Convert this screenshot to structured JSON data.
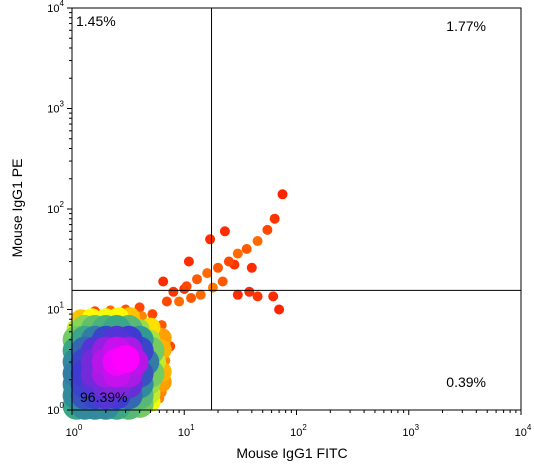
{
  "chart_data": {
    "type": "scatter",
    "subtype": "flow-cytometry-density-dot-plot",
    "xlabel": "Mouse IgG1 FITC",
    "ylabel": "Mouse IgG1 PE",
    "xscale": "log",
    "yscale": "log",
    "xlim": [
      1,
      10000
    ],
    "ylim": [
      1,
      10000
    ],
    "xticks": [
      {
        "base": "10",
        "exp": "0",
        "value": 1
      },
      {
        "base": "10",
        "exp": "1",
        "value": 10
      },
      {
        "base": "10",
        "exp": "2",
        "value": 100
      },
      {
        "base": "10",
        "exp": "3",
        "value": 1000
      },
      {
        "base": "10",
        "exp": "4",
        "value": 10000
      }
    ],
    "yticks": [
      {
        "base": "10",
        "exp": "0",
        "value": 1
      },
      {
        "base": "10",
        "exp": "1",
        "value": 10
      },
      {
        "base": "10",
        "exp": "2",
        "value": 100
      },
      {
        "base": "10",
        "exp": "3",
        "value": 1000
      },
      {
        "base": "10",
        "exp": "4",
        "value": 10000
      }
    ],
    "gate": {
      "x": 17.5,
      "y": 15.5
    },
    "quadrants": {
      "upper_left": "1.45%",
      "upper_right": "1.77%",
      "lower_left": "96.39%",
      "lower_right": "0.39%"
    },
    "density_colors": [
      "#ff0000",
      "#ff7f00",
      "#ffff00",
      "#7fd35a",
      "#2e9f8f",
      "#3b3bd0",
      "#9a1fe0",
      "#ff00ff"
    ],
    "points": [
      {
        "x": 1.1,
        "y": 1.1,
        "d": 0.55
      },
      {
        "x": 1.3,
        "y": 1.1,
        "d": 0.6
      },
      {
        "x": 1.6,
        "y": 1.1,
        "d": 0.6
      },
      {
        "x": 2.0,
        "y": 1.1,
        "d": 0.6
      },
      {
        "x": 2.5,
        "y": 1.1,
        "d": 0.55
      },
      {
        "x": 3.2,
        "y": 1.1,
        "d": 0.5
      },
      {
        "x": 4.0,
        "y": 1.15,
        "d": 0.45
      },
      {
        "x": 5.0,
        "y": 1.2,
        "d": 0.3
      },
      {
        "x": 6.0,
        "y": 1.3,
        "d": 0.15
      },
      {
        "x": 1.1,
        "y": 1.4,
        "d": 0.6
      },
      {
        "x": 1.3,
        "y": 1.4,
        "d": 0.68
      },
      {
        "x": 1.6,
        "y": 1.4,
        "d": 0.7
      },
      {
        "x": 2.0,
        "y": 1.4,
        "d": 0.75
      },
      {
        "x": 2.5,
        "y": 1.4,
        "d": 0.72
      },
      {
        "x": 3.2,
        "y": 1.4,
        "d": 0.65
      },
      {
        "x": 4.0,
        "y": 1.4,
        "d": 0.5
      },
      {
        "x": 5.0,
        "y": 1.45,
        "d": 0.35
      },
      {
        "x": 6.3,
        "y": 1.5,
        "d": 0.15
      },
      {
        "x": 1.1,
        "y": 1.8,
        "d": 0.6
      },
      {
        "x": 1.3,
        "y": 1.8,
        "d": 0.7
      },
      {
        "x": 1.6,
        "y": 1.8,
        "d": 0.75
      },
      {
        "x": 2.0,
        "y": 1.8,
        "d": 0.8
      },
      {
        "x": 2.5,
        "y": 1.8,
        "d": 0.82
      },
      {
        "x": 3.2,
        "y": 1.8,
        "d": 0.78
      },
      {
        "x": 4.0,
        "y": 1.8,
        "d": 0.6
      },
      {
        "x": 5.0,
        "y": 1.8,
        "d": 0.4
      },
      {
        "x": 6.3,
        "y": 1.9,
        "d": 0.18
      },
      {
        "x": 1.1,
        "y": 2.3,
        "d": 0.62
      },
      {
        "x": 1.3,
        "y": 2.3,
        "d": 0.72
      },
      {
        "x": 1.6,
        "y": 2.3,
        "d": 0.8
      },
      {
        "x": 2.0,
        "y": 2.3,
        "d": 0.88
      },
      {
        "x": 2.5,
        "y": 2.3,
        "d": 0.92
      },
      {
        "x": 3.2,
        "y": 2.3,
        "d": 0.88
      },
      {
        "x": 4.0,
        "y": 2.3,
        "d": 0.68
      },
      {
        "x": 5.0,
        "y": 2.3,
        "d": 0.45
      },
      {
        "x": 6.3,
        "y": 2.4,
        "d": 0.2
      },
      {
        "x": 1.1,
        "y": 3.0,
        "d": 0.6
      },
      {
        "x": 1.3,
        "y": 3.0,
        "d": 0.7
      },
      {
        "x": 1.6,
        "y": 3.0,
        "d": 0.8
      },
      {
        "x": 2.0,
        "y": 3.0,
        "d": 0.9
      },
      {
        "x": 2.5,
        "y": 3.0,
        "d": 0.98
      },
      {
        "x": 3.0,
        "y": 3.2,
        "d": 1.0
      },
      {
        "x": 3.6,
        "y": 3.0,
        "d": 0.9
      },
      {
        "x": 4.5,
        "y": 3.0,
        "d": 0.62
      },
      {
        "x": 5.6,
        "y": 3.0,
        "d": 0.35
      },
      {
        "x": 6.8,
        "y": 3.1,
        "d": 0.15
      },
      {
        "x": 1.1,
        "y": 3.9,
        "d": 0.55
      },
      {
        "x": 1.3,
        "y": 3.9,
        "d": 0.65
      },
      {
        "x": 1.6,
        "y": 3.9,
        "d": 0.75
      },
      {
        "x": 2.0,
        "y": 3.9,
        "d": 0.85
      },
      {
        "x": 2.5,
        "y": 3.9,
        "d": 0.92
      },
      {
        "x": 3.2,
        "y": 3.9,
        "d": 0.88
      },
      {
        "x": 4.0,
        "y": 3.9,
        "d": 0.7
      },
      {
        "x": 5.0,
        "y": 3.9,
        "d": 0.45
      },
      {
        "x": 6.3,
        "y": 4.0,
        "d": 0.2
      },
      {
        "x": 7.5,
        "y": 4.3,
        "d": 0.08
      },
      {
        "x": 1.1,
        "y": 5.0,
        "d": 0.45
      },
      {
        "x": 1.3,
        "y": 5.0,
        "d": 0.55
      },
      {
        "x": 1.6,
        "y": 5.0,
        "d": 0.62
      },
      {
        "x": 2.0,
        "y": 5.0,
        "d": 0.7
      },
      {
        "x": 2.5,
        "y": 5.0,
        "d": 0.75
      },
      {
        "x": 3.2,
        "y": 5.0,
        "d": 0.72
      },
      {
        "x": 4.0,
        "y": 5.0,
        "d": 0.58
      },
      {
        "x": 5.0,
        "y": 5.0,
        "d": 0.38
      },
      {
        "x": 6.3,
        "y": 5.2,
        "d": 0.18
      },
      {
        "x": 1.1,
        "y": 6.4,
        "d": 0.35
      },
      {
        "x": 1.3,
        "y": 6.4,
        "d": 0.42
      },
      {
        "x": 1.6,
        "y": 6.4,
        "d": 0.48
      },
      {
        "x": 2.0,
        "y": 6.4,
        "d": 0.52
      },
      {
        "x": 2.5,
        "y": 6.4,
        "d": 0.55
      },
      {
        "x": 3.2,
        "y": 6.4,
        "d": 0.5
      },
      {
        "x": 4.0,
        "y": 6.4,
        "d": 0.4
      },
      {
        "x": 5.0,
        "y": 6.6,
        "d": 0.25
      },
      {
        "x": 6.3,
        "y": 7.0,
        "d": 0.1
      },
      {
        "x": 1.2,
        "y": 8.0,
        "d": 0.22
      },
      {
        "x": 1.5,
        "y": 8.2,
        "d": 0.28
      },
      {
        "x": 2.0,
        "y": 8.2,
        "d": 0.3
      },
      {
        "x": 2.6,
        "y": 8.4,
        "d": 0.28
      },
      {
        "x": 3.3,
        "y": 8.4,
        "d": 0.22
      },
      {
        "x": 4.2,
        "y": 8.6,
        "d": 0.15
      },
      {
        "x": 5.2,
        "y": 9.0,
        "d": 0.08
      },
      {
        "x": 1.6,
        "y": 9.6,
        "d": 0.08
      },
      {
        "x": 2.2,
        "y": 9.8,
        "d": 0.12
      },
      {
        "x": 3.0,
        "y": 10.0,
        "d": 0.1
      },
      {
        "x": 4.0,
        "y": 10.5,
        "d": 0.08
      },
      {
        "x": 7.0,
        "y": 12.0,
        "d": 0.08
      },
      {
        "x": 9.0,
        "y": 12.0,
        "d": 0.12
      },
      {
        "x": 11.5,
        "y": 13.0,
        "d": 0.1
      },
      {
        "x": 14.0,
        "y": 14.0,
        "d": 0.12
      },
      {
        "x": 18.0,
        "y": 16.5,
        "d": 0.14
      },
      {
        "x": 22.0,
        "y": 19.0,
        "d": 0.1
      },
      {
        "x": 8.0,
        "y": 15.0,
        "d": 0.06
      },
      {
        "x": 10.5,
        "y": 17.0,
        "d": 0.08
      },
      {
        "x": 13.0,
        "y": 20.0,
        "d": 0.1
      },
      {
        "x": 16.0,
        "y": 23.0,
        "d": 0.12
      },
      {
        "x": 20.0,
        "y": 26.0,
        "d": 0.1
      },
      {
        "x": 25.0,
        "y": 30.0,
        "d": 0.08
      },
      {
        "x": 30.0,
        "y": 36.0,
        "d": 0.12
      },
      {
        "x": 36.0,
        "y": 40.0,
        "d": 0.1
      },
      {
        "x": 45.0,
        "y": 48.0,
        "d": 0.12
      },
      {
        "x": 55.0,
        "y": 62.0,
        "d": 0.08
      },
      {
        "x": 64.0,
        "y": 80.0,
        "d": 0.06
      },
      {
        "x": 75.0,
        "y": 140.0,
        "d": 0.04
      },
      {
        "x": 11.0,
        "y": 30.0,
        "d": 0.05
      },
      {
        "x": 17.0,
        "y": 50.0,
        "d": 0.05
      },
      {
        "x": 28.0,
        "y": 28.0,
        "d": 0.06
      },
      {
        "x": 40.0,
        "y": 26.0,
        "d": 0.05
      },
      {
        "x": 23.0,
        "y": 60.0,
        "d": 0.05
      },
      {
        "x": 10.0,
        "y": 16.0,
        "d": 0.06
      },
      {
        "x": 30.0,
        "y": 14.0,
        "d": 0.05
      },
      {
        "x": 45.0,
        "y": 13.5,
        "d": 0.06
      },
      {
        "x": 62.0,
        "y": 13.5,
        "d": 0.05
      },
      {
        "x": 70.0,
        "y": 10.0,
        "d": 0.04
      },
      {
        "x": 38.0,
        "y": 15.0,
        "d": 0.05
      },
      {
        "x": 6.5,
        "y": 19.0,
        "d": 0.05
      }
    ]
  }
}
